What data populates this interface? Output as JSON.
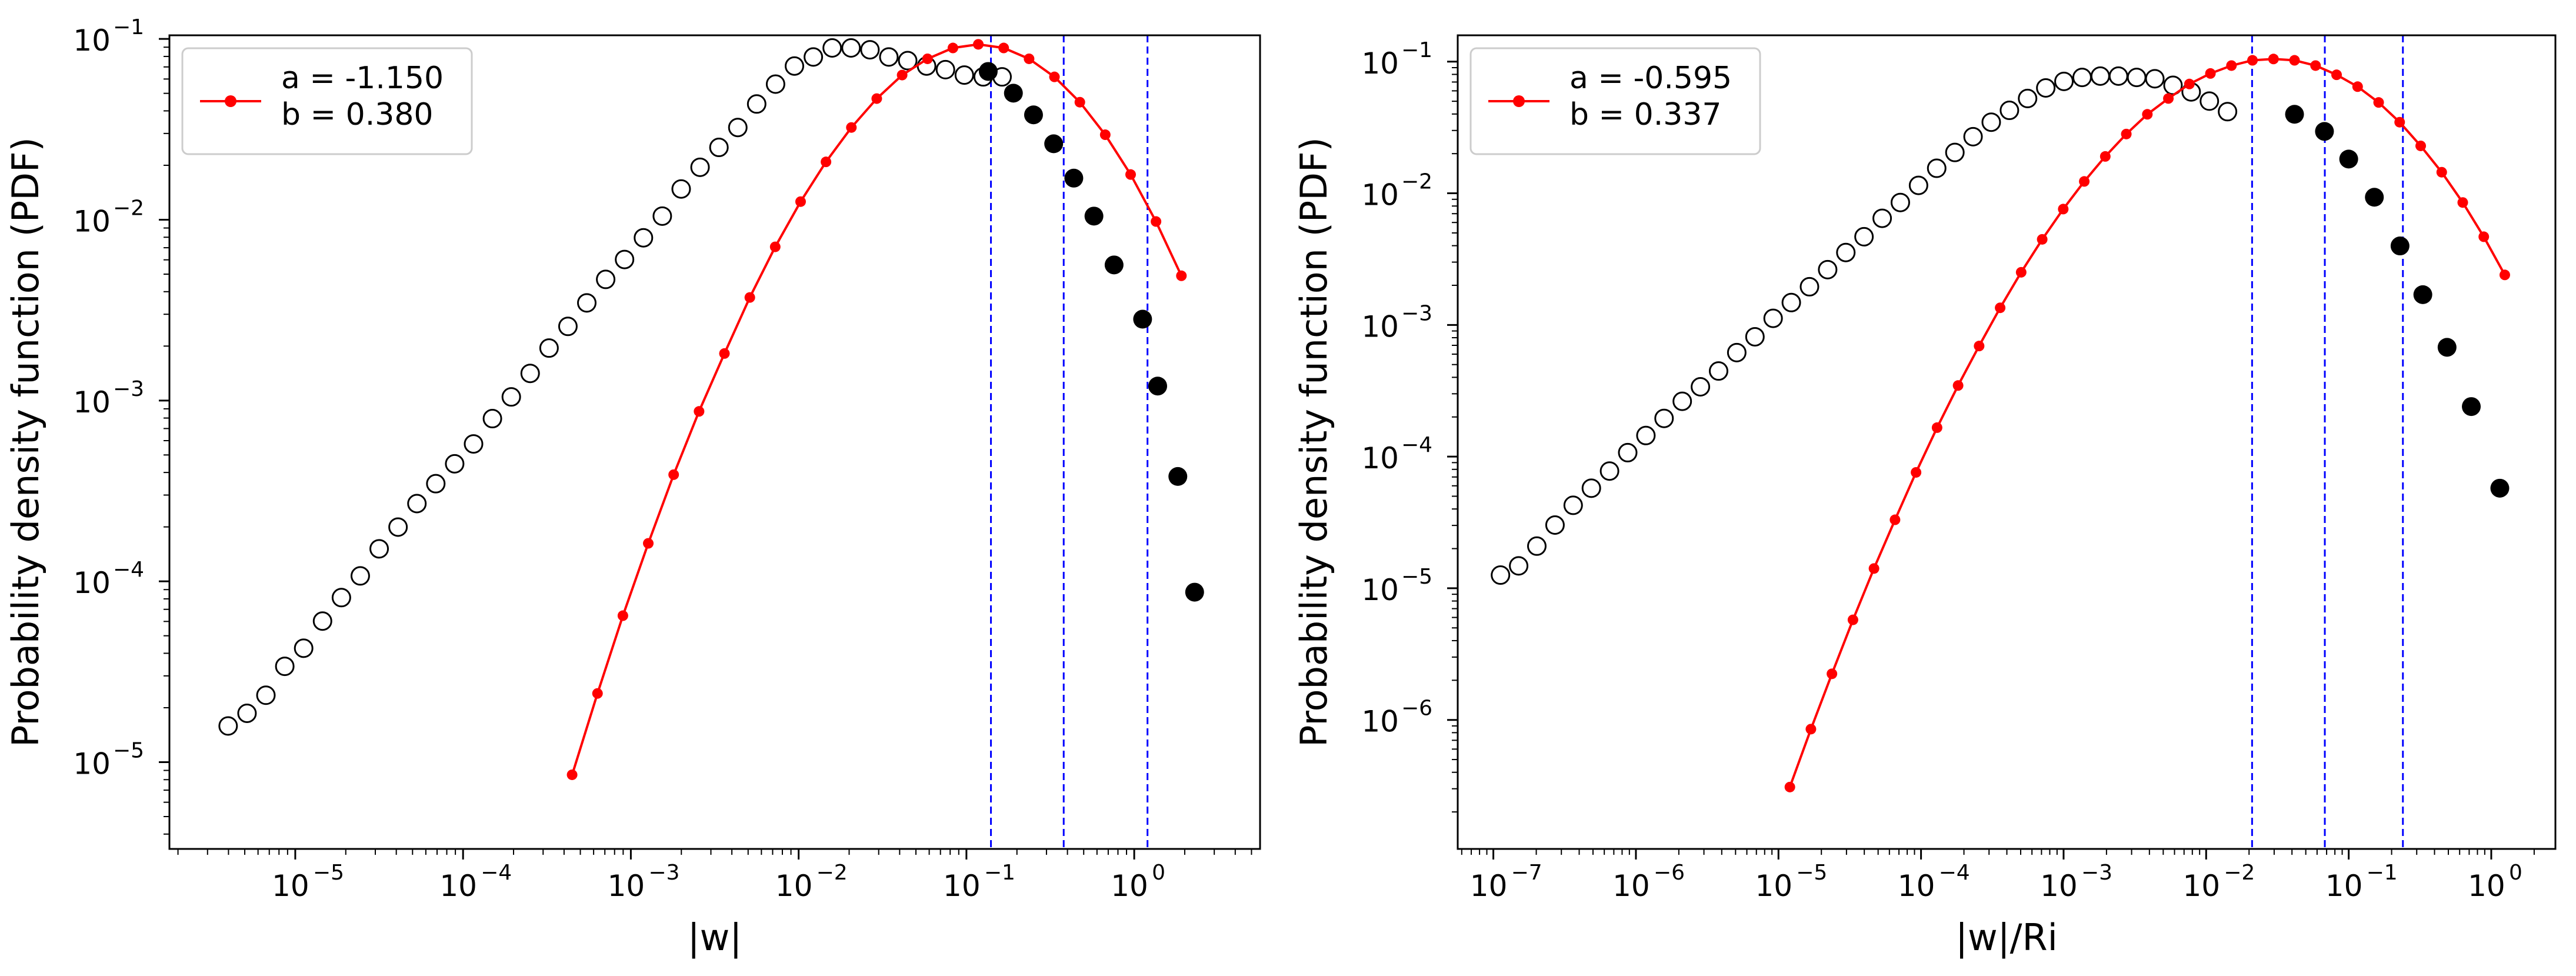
{
  "chart_data": [
    {
      "type": "scatter",
      "xscale": "log",
      "yscale": "log",
      "xlabel": "|w|",
      "ylabel": "Probability density function (PDF)",
      "xlim_exp": [
        -5.75,
        0.75
      ],
      "ylim_exp": [
        -5.48,
        -0.98
      ],
      "x_ticks": [
        {
          "base": "10",
          "exp": "−5",
          "value_exp": -5
        },
        {
          "base": "10",
          "exp": "−4",
          "value_exp": -4
        },
        {
          "base": "10",
          "exp": "−3",
          "value_exp": -3
        },
        {
          "base": "10",
          "exp": "−2",
          "value_exp": -2
        },
        {
          "base": "10",
          "exp": "−1",
          "value_exp": -1
        },
        {
          "base": "10",
          "exp": "0",
          "value_exp": 0
        }
      ],
      "y_ticks": [
        {
          "base": "10",
          "exp": "−5",
          "value_exp": -5
        },
        {
          "base": "10",
          "exp": "−4",
          "value_exp": -4
        },
        {
          "base": "10",
          "exp": "−3",
          "value_exp": -3
        },
        {
          "base": "10",
          "exp": "−2",
          "value_exp": -2
        },
        {
          "base": "10",
          "exp": "−1",
          "value_exp": -1
        }
      ],
      "legend": {
        "entries": [
          "a = -1.150",
          "b = 0.380"
        ],
        "location": "upper-left"
      },
      "colors": {
        "fit": "#ff0000",
        "vlines": "#0000ff",
        "points": "#000000"
      },
      "vlines_x": [
        0.14,
        0.38,
        1.2
      ],
      "series": [
        {
          "name": "empirical-open",
          "marker": "open-circle",
          "x_log10_start": -5.4,
          "x_log10_step": 0.1125,
          "count": 42,
          "y_log10": [
            -4.8,
            -4.73,
            -4.63,
            -4.47,
            -4.37,
            -4.22,
            -4.09,
            -3.97,
            -3.82,
            -3.7,
            -3.57,
            -3.46,
            -3.35,
            -3.24,
            -3.1,
            -2.98,
            -2.85,
            -2.71,
            -2.59,
            -2.46,
            -2.33,
            -2.22,
            -2.1,
            -1.98,
            -1.83,
            -1.71,
            -1.6,
            -1.49,
            -1.36,
            -1.25,
            -1.15,
            -1.1,
            -1.05,
            -1.05,
            -1.06,
            -1.1,
            -1.12,
            -1.15,
            -1.17,
            -1.2,
            -1.21,
            -1.21
          ]
        },
        {
          "name": "empirical-filled",
          "marker": "filled-circle",
          "x_log10": [
            -0.87,
            -0.72,
            -0.6,
            -0.48,
            -0.36,
            -0.24,
            -0.12,
            0.05,
            0.14,
            0.26,
            0.36
          ],
          "y_log10": [
            -1.18,
            -1.3,
            -1.42,
            -1.58,
            -1.77,
            -1.98,
            -2.25,
            -2.55,
            -2.92,
            -3.42,
            -4.06
          ]
        },
        {
          "name": "fit",
          "marker": "small-filled-dot-line",
          "x_log10_start": -3.35,
          "x_log10_step": 0.1513,
          "count": 25,
          "y_log10": [
            -5.07,
            -4.62,
            -4.19,
            -3.79,
            -3.41,
            -3.06,
            -2.74,
            -2.43,
            -2.15,
            -1.9,
            -1.68,
            -1.49,
            -1.33,
            -1.2,
            -1.11,
            -1.05,
            -1.03,
            -1.05,
            -1.11,
            -1.21,
            -1.35,
            -1.53,
            -1.75,
            -2.01,
            -2.31
          ]
        }
      ]
    },
    {
      "type": "scatter",
      "xscale": "log",
      "yscale": "log",
      "xlabel": "|w|/Ri",
      "ylabel": "Probability density function (PDF)",
      "xlim_exp": [
        -7.25,
        0.45
      ],
      "ylim_exp": [
        -6.98,
        -0.8
      ],
      "x_ticks": [
        {
          "base": "10",
          "exp": "−7",
          "value_exp": -7
        },
        {
          "base": "10",
          "exp": "−6",
          "value_exp": -6
        },
        {
          "base": "10",
          "exp": "−5",
          "value_exp": -5
        },
        {
          "base": "10",
          "exp": "−4",
          "value_exp": -4
        },
        {
          "base": "10",
          "exp": "−3",
          "value_exp": -3
        },
        {
          "base": "10",
          "exp": "−2",
          "value_exp": -2
        },
        {
          "base": "10",
          "exp": "−1",
          "value_exp": -1
        },
        {
          "base": "10",
          "exp": "0",
          "value_exp": 0
        }
      ],
      "y_ticks": [
        {
          "base": "10",
          "exp": "−6",
          "value_exp": -6
        },
        {
          "base": "10",
          "exp": "−5",
          "value_exp": -5
        },
        {
          "base": "10",
          "exp": "−4",
          "value_exp": -4
        },
        {
          "base": "10",
          "exp": "−3",
          "value_exp": -3
        },
        {
          "base": "10",
          "exp": "−2",
          "value_exp": -2
        },
        {
          "base": "10",
          "exp": "−1",
          "value_exp": -1
        }
      ],
      "legend": {
        "entries": [
          "a = -0.595",
          "b = 0.337"
        ],
        "location": "upper-left"
      },
      "colors": {
        "fit": "#ff0000",
        "vlines": "#0000ff",
        "points": "#000000"
      },
      "vlines_x": [
        0.021,
        0.068,
        0.24
      ],
      "series": [
        {
          "name": "empirical-open",
          "marker": "open-circle",
          "x_log10_start": -6.95,
          "x_log10_step": 0.1275,
          "count": 41,
          "y_log10": [
            -4.9,
            -4.83,
            -4.68,
            -4.52,
            -4.37,
            -4.24,
            -4.11,
            -3.97,
            -3.84,
            -3.71,
            -3.58,
            -3.47,
            -3.35,
            -3.21,
            -3.09,
            -2.95,
            -2.83,
            -2.71,
            -2.58,
            -2.45,
            -2.33,
            -2.19,
            -2.07,
            -1.94,
            -1.81,
            -1.69,
            -1.57,
            -1.46,
            -1.37,
            -1.28,
            -1.2,
            -1.15,
            -1.12,
            -1.11,
            -1.11,
            -1.12,
            -1.13,
            -1.18,
            -1.23,
            -1.3,
            -1.38
          ]
        },
        {
          "name": "empirical-filled",
          "marker": "filled-circle",
          "x_log10": [
            -1.38,
            -1.17,
            -1.0,
            -0.82,
            -0.64,
            -0.48,
            -0.31,
            -0.14,
            0.06
          ],
          "y_log10": [
            -1.4,
            -1.53,
            -1.74,
            -2.03,
            -2.4,
            -2.77,
            -3.17,
            -3.62,
            -4.24
          ]
        },
        {
          "name": "fit",
          "marker": "small-filled-dot-line",
          "x_log10_start": -4.92,
          "x_log10_step": 0.1475,
          "count": 35,
          "y_log10": [
            -6.51,
            -6.07,
            -5.65,
            -5.24,
            -4.85,
            -4.48,
            -4.12,
            -3.78,
            -3.46,
            -3.16,
            -2.87,
            -2.6,
            -2.35,
            -2.12,
            -1.91,
            -1.72,
            -1.55,
            -1.4,
            -1.28,
            -1.17,
            -1.09,
            -1.03,
            -0.99,
            -0.98,
            -0.99,
            -1.03,
            -1.1,
            -1.19,
            -1.31,
            -1.46,
            -1.64,
            -1.84,
            -2.07,
            -2.33,
            -2.62
          ]
        }
      ]
    }
  ]
}
